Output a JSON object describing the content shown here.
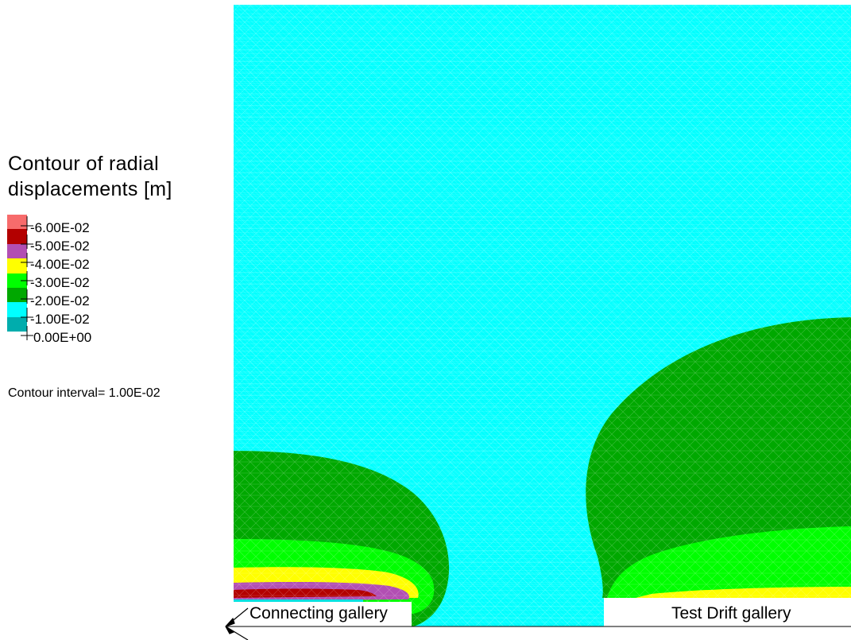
{
  "legend": {
    "title_line1": "Contour of radial",
    "title_line2": "displacements [m]",
    "entries": [
      {
        "label": "-6.00E-02",
        "color": "#f76b6b"
      },
      {
        "label": "-5.00E-02",
        "color": "#b30000"
      },
      {
        "label": "-4.00E-02",
        "color": "#b24fb3"
      },
      {
        "label": "-3.00E-02",
        "color": "#ffff00"
      },
      {
        "label": "-2.00E-02",
        "color": "#00ff00"
      },
      {
        "label": "-1.00E-02",
        "color": "#00a800"
      },
      {
        "label": "0.00E+00",
        "color": "#00ffff"
      }
    ],
    "bottom_swatch_color": "#00adad",
    "interval_text": "Contour interval=  1.00E-02"
  },
  "plot": {
    "background_color": "#00ffff",
    "mesh_color": "#7fffff"
  },
  "labels": {
    "connecting_gallery": "Connecting gallery",
    "test_drift_gallery": "Test Drift gallery"
  }
}
